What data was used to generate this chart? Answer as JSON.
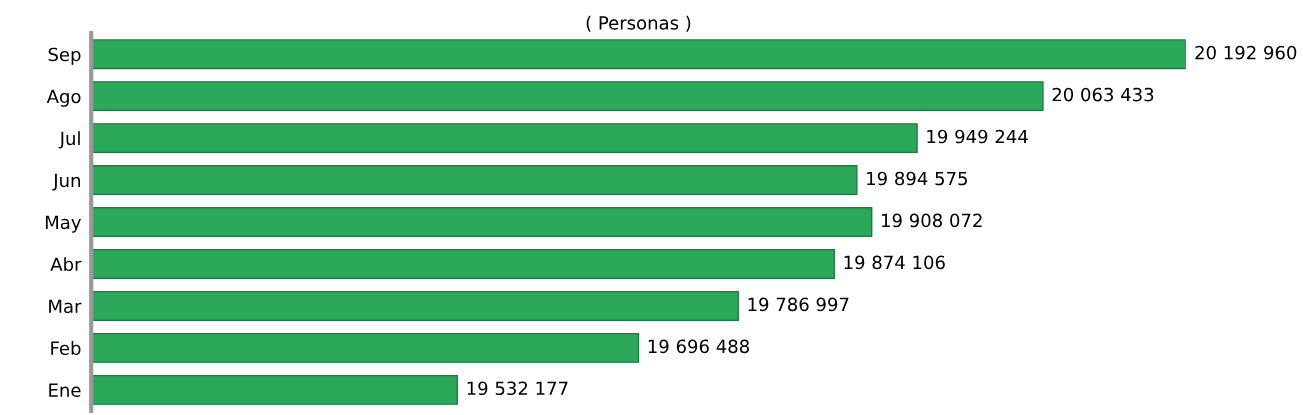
{
  "chart_data": {
    "type": "bar",
    "orientation": "horizontal",
    "title": "( Personas )",
    "categories": [
      "Sep",
      "Ago",
      "Jul",
      "Jun",
      "May",
      "Abr",
      "Mar",
      "Feb",
      "Ene"
    ],
    "values": [
      20192960,
      20063433,
      19949244,
      19894575,
      19908072,
      19874106,
      19786997,
      19696488,
      19532177
    ],
    "value_labels": [
      "20 192 960",
      "20 063 433",
      "19 949 244",
      "19 894 575",
      "19 908 072",
      "19 874 106",
      "19 786 997",
      "19 696 488",
      "19 532 177"
    ],
    "color": "#2ca85a",
    "xlim": [
      19200000,
      20192960
    ],
    "tick_labels": "y",
    "grid": false,
    "legend": false
  }
}
